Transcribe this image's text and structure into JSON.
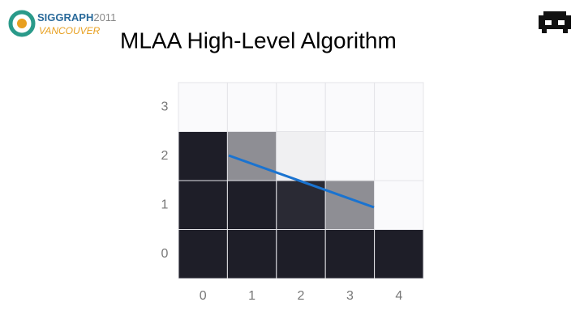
{
  "header": {
    "title": "MLAA High-Level Algorithm",
    "logo_top": "SIGGRAPH",
    "logo_year": "2011",
    "logo_city": "VANCOUVER"
  },
  "grid": {
    "x_labels": [
      "0",
      "1",
      "2",
      "3",
      "4"
    ],
    "y_labels": [
      "3",
      "2",
      "1",
      "0"
    ],
    "cell_colors": [
      [
        "#fafafc",
        "#fafafc",
        "#fafafc",
        "#fafafc",
        "#fafafc"
      ],
      [
        "#1e1e28",
        "#8e8e94",
        "#f0f0f2",
        "#fafafc",
        "#fafafc"
      ],
      [
        "#1e1e28",
        "#1e1e28",
        "#2a2a34",
        "#8e8e94",
        "#fafafc"
      ],
      [
        "#1e1e28",
        "#1e1e28",
        "#1e1e28",
        "#1e1e28",
        "#1e1e28"
      ]
    ],
    "edge_color": "#1a73d0"
  }
}
